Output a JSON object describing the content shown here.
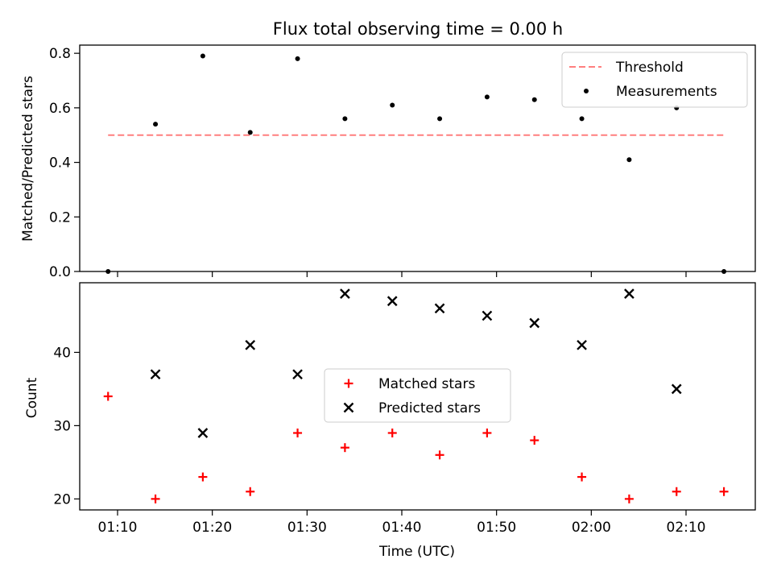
{
  "chart_data": [
    {
      "type": "scatter",
      "title": "Flux total observing time = 0.00 h",
      "xlabel": "",
      "ylabel": "Matched/Predicted stars",
      "ylim": [
        0,
        0.83
      ],
      "yticks": [
        "0.0",
        "0.2",
        "0.4",
        "0.6",
        "0.8"
      ],
      "legend_position": "top-right",
      "series": [
        {
          "name": "Threshold",
          "style": "dashed-line",
          "color": "#ff7f7f",
          "x": [
            "01:09",
            "02:14"
          ],
          "y": [
            0.5,
            0.5
          ]
        },
        {
          "name": "Measurements",
          "style": "dot",
          "color": "#000000",
          "x": [
            "01:09",
            "01:14",
            "01:19",
            "01:24",
            "01:29",
            "01:34",
            "01:39",
            "01:44",
            "01:49",
            "01:54",
            "01:59",
            "02:04",
            "02:09",
            "02:14"
          ],
          "y": [
            0.0,
            0.54,
            0.79,
            0.51,
            0.78,
            0.56,
            0.61,
            0.56,
            0.64,
            0.63,
            0.56,
            0.41,
            0.6,
            0.0
          ]
        }
      ]
    },
    {
      "type": "scatter",
      "title": "",
      "xlabel": "Time (UTC)",
      "ylabel": "Count",
      "ylim": [
        18.5,
        49.5
      ],
      "yticks": [
        "20",
        "30",
        "40"
      ],
      "xticks": [
        "01:10",
        "01:20",
        "01:30",
        "01:40",
        "01:50",
        "02:00",
        "02:10"
      ],
      "legend_position": "center",
      "series": [
        {
          "name": "Matched stars",
          "marker": "plus",
          "color": "#ff0000",
          "x": [
            "01:09",
            "01:14",
            "01:19",
            "01:24",
            "01:29",
            "01:34",
            "01:39",
            "01:44",
            "01:49",
            "01:54",
            "01:59",
            "02:04",
            "02:09",
            "02:14"
          ],
          "y": [
            34,
            20,
            23,
            21,
            29,
            27,
            29,
            26,
            29,
            28,
            23,
            20,
            21,
            21
          ]
        },
        {
          "name": "Predicted stars",
          "marker": "x",
          "color": "#000000",
          "x": [
            "01:14",
            "01:19",
            "01:24",
            "01:29",
            "01:34",
            "01:39",
            "01:44",
            "01:49",
            "01:54",
            "01:59",
            "02:04",
            "02:09"
          ],
          "y": [
            37,
            29,
            41,
            37,
            48,
            47,
            46,
            45,
            44,
            41,
            48,
            35
          ]
        }
      ]
    }
  ]
}
